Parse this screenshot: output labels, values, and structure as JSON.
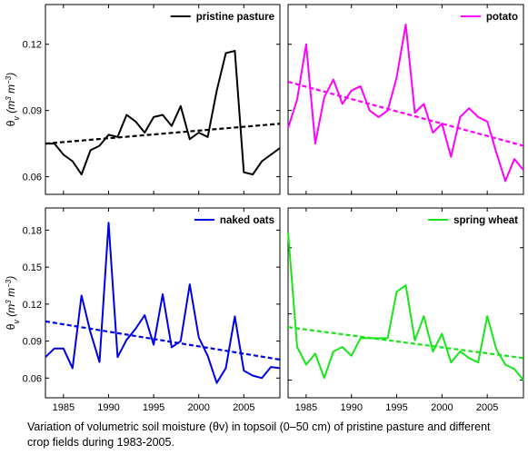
{
  "caption_line1": "Variation of volumetric soil moisture (θv) in topsoil (0–50 cm) of pristine pasture and different",
  "caption_line2": "crop fields during 1983-2005.",
  "ylabel": "θ",
  "ylabel_sub": "v",
  "ylabel_unit_pre": " (m",
  "ylabel_unit_exp1": "3",
  "ylabel_unit_mid": " m",
  "ylabel_unit_exp2": "−3",
  "ylabel_unit_post": ")",
  "chart_data": [
    {
      "type": "line",
      "title": "",
      "legend": "pristine pasture",
      "legend_placement": "top-right",
      "color": "#000000",
      "xlim": [
        1983,
        2009
      ],
      "ylim": [
        0.052,
        0.138
      ],
      "xticks": [
        "1985",
        "1990",
        "1995",
        "2000",
        "2005"
      ],
      "yticks": [
        "0.06",
        "0.09",
        "0.12"
      ],
      "show_xtick_labels": false,
      "show_ylabel": true,
      "grid": false,
      "x": [
        1983,
        1984,
        1985,
        1986,
        1987,
        1988,
        1989,
        1990,
        1991,
        1992,
        1993,
        1994,
        1995,
        1996,
        1997,
        1998,
        1999,
        2000,
        2001,
        2002,
        2003,
        2004,
        2005,
        2006,
        2007,
        2008,
        2009
      ],
      "series": [
        {
          "name": "pristine pasture",
          "values": [
            0.075,
            0.075,
            0.07,
            0.067,
            0.061,
            0.072,
            0.074,
            0.079,
            0.078,
            0.088,
            0.085,
            0.08,
            0.087,
            0.088,
            0.083,
            0.092,
            0.077,
            0.08,
            0.078,
            0.099,
            0.116,
            0.117,
            0.062,
            0.061,
            0.067,
            0.07,
            0.073
          ]
        }
      ],
      "trend": [
        0.075,
        0.084
      ]
    },
    {
      "type": "line",
      "title": "",
      "legend": "potato",
      "legend_placement": "top-right",
      "color": "#ff00ff",
      "xlim": [
        1983,
        2009
      ],
      "ylim": [
        0.052,
        0.138
      ],
      "xticks": [
        "1985",
        "1990",
        "1995",
        "2000",
        "2005"
      ],
      "yticks": [
        "0.06",
        "0.09",
        "0.12"
      ],
      "show_xtick_labels": false,
      "show_ylabel": false,
      "grid": false,
      "x": [
        1983,
        1984,
        1985,
        1986,
        1987,
        1988,
        1989,
        1990,
        1991,
        1992,
        1993,
        1994,
        1995,
        1996,
        1997,
        1998,
        1999,
        2000,
        2001,
        2002,
        2003,
        2004,
        2005,
        2006,
        2007,
        2008,
        2009
      ],
      "series": [
        {
          "name": "potato",
          "values": [
            0.082,
            0.095,
            0.12,
            0.075,
            0.096,
            0.104,
            0.093,
            0.099,
            0.101,
            0.09,
            0.087,
            0.09,
            0.105,
            0.129,
            0.089,
            0.093,
            0.08,
            0.084,
            0.069,
            0.087,
            0.091,
            0.087,
            0.085,
            0.071,
            0.058,
            0.068,
            0.063
          ]
        }
      ],
      "trend": [
        0.103,
        0.074
      ]
    },
    {
      "type": "line",
      "title": "",
      "legend": "naked oats",
      "legend_placement": "top-right",
      "color": "#0000e6",
      "xlim": [
        1983,
        2009
      ],
      "ylim": [
        0.044,
        0.198
      ],
      "xticks": [
        "1985",
        "1990",
        "1995",
        "2000",
        "2005"
      ],
      "yticks": [
        "0.06",
        "0.09",
        "0.12",
        "0.15",
        "0.18"
      ],
      "show_xtick_labels": true,
      "show_ylabel": true,
      "grid": false,
      "x": [
        1983,
        1984,
        1985,
        1986,
        1987,
        1988,
        1989,
        1990,
        1991,
        1992,
        1993,
        1994,
        1995,
        1996,
        1997,
        1998,
        1999,
        2000,
        2001,
        2002,
        2003,
        2004,
        2005,
        2006,
        2007,
        2008,
        2009
      ],
      "series": [
        {
          "name": "naked oats",
          "values": [
            0.077,
            0.084,
            0.084,
            0.068,
            0.127,
            0.097,
            0.073,
            0.186,
            0.077,
            0.091,
            0.1,
            0.111,
            0.087,
            0.128,
            0.085,
            0.09,
            0.136,
            0.093,
            0.078,
            0.056,
            0.068,
            0.11,
            0.066,
            0.062,
            0.06,
            0.069,
            0.068
          ]
        }
      ],
      "trend": [
        0.106,
        0.075
      ]
    },
    {
      "type": "line",
      "title": "",
      "legend": "spring wheat",
      "legend_placement": "top-right",
      "color": "#19e619",
      "xlim": [
        1983,
        2009
      ],
      "ylim": [
        0.052,
        0.138
      ],
      "xticks": [
        "1985",
        "1990",
        "1995",
        "2000",
        "2005"
      ],
      "yticks": [
        "0.06",
        "0.09",
        "0.12"
      ],
      "show_xtick_labels": true,
      "show_ylabel": false,
      "grid": false,
      "x": [
        1983,
        1984,
        1985,
        1986,
        1987,
        1988,
        1989,
        1990,
        1991,
        1992,
        1993,
        1994,
        1995,
        1996,
        1997,
        1998,
        1999,
        2000,
        2001,
        2002,
        2003,
        2004,
        2005,
        2006,
        2007,
        2008,
        2009
      ],
      "series": [
        {
          "name": "spring wheat",
          "values": [
            0.127,
            0.075,
            0.067,
            0.072,
            0.061,
            0.073,
            0.075,
            0.071,
            0.079,
            0.079,
            0.079,
            0.079,
            0.1,
            0.103,
            0.078,
            0.089,
            0.073,
            0.081,
            0.068,
            0.073,
            0.07,
            0.068,
            0.089,
            0.074,
            0.067,
            0.065,
            0.06
          ]
        }
      ],
      "trend": [
        0.084,
        0.07
      ]
    }
  ]
}
